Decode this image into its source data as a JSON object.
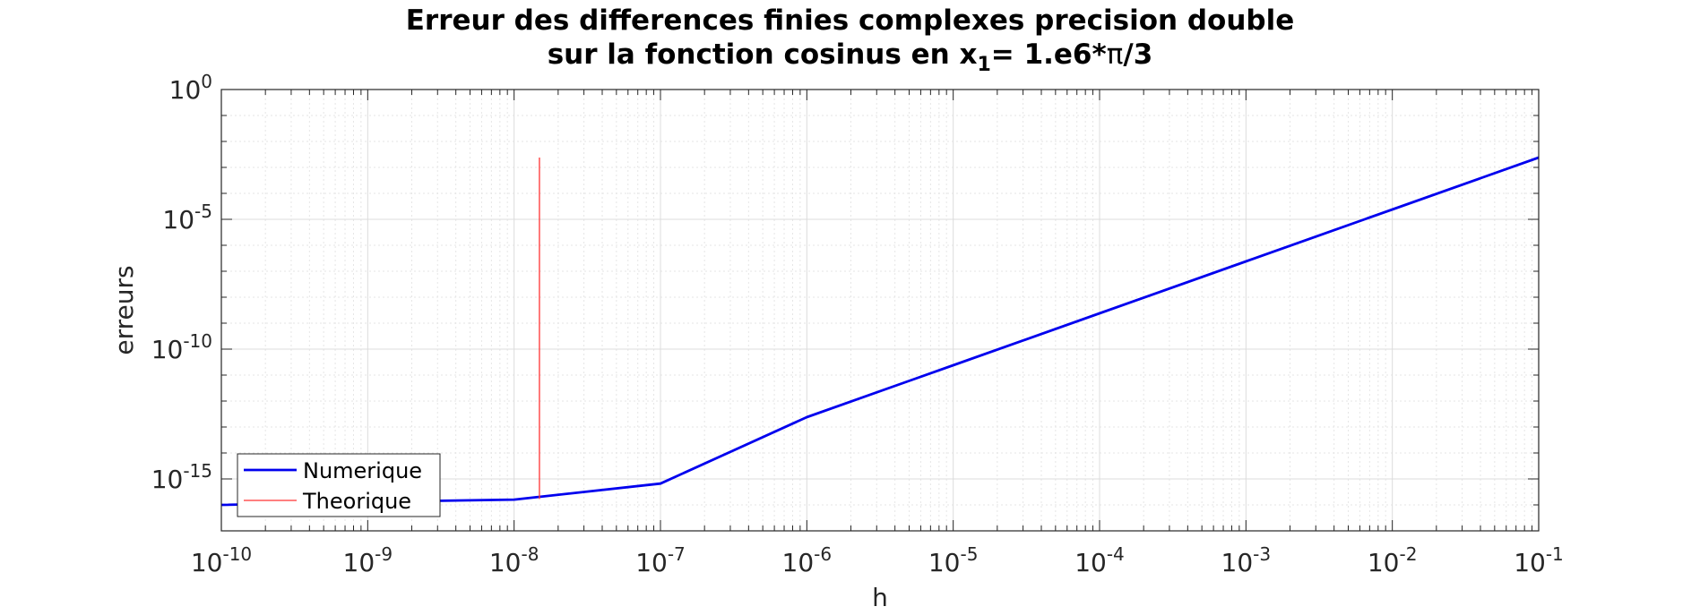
{
  "chart_data": {
    "type": "line",
    "title_line1": "Erreur des differences finies complexes precision double",
    "title_line2_pre": "sur la fonction cosinus en x",
    "title_line2_sub": "1",
    "title_line2_mid": "= 1.e6*",
    "title_line2_pi": "π",
    "title_line2_post": "/3",
    "xlabel": "h",
    "ylabel": "erreurs",
    "xscale": "log",
    "yscale": "log",
    "xlim": [
      1e-10,
      0.1
    ],
    "ylim": [
      1e-17,
      1
    ],
    "grid": true,
    "minor_grid": true,
    "legend_position": "bottom-left",
    "x_ticks": [
      {
        "value": 1e-10,
        "base": "10",
        "exp": "-10"
      },
      {
        "value": 1e-09,
        "base": "10",
        "exp": "-9"
      },
      {
        "value": 1e-08,
        "base": "10",
        "exp": "-8"
      },
      {
        "value": 1e-07,
        "base": "10",
        "exp": "-7"
      },
      {
        "value": 1e-06,
        "base": "10",
        "exp": "-6"
      },
      {
        "value": 1e-05,
        "base": "10",
        "exp": "-5"
      },
      {
        "value": 0.0001,
        "base": "10",
        "exp": "-4"
      },
      {
        "value": 0.001,
        "base": "10",
        "exp": "-3"
      },
      {
        "value": 0.01,
        "base": "10",
        "exp": "-2"
      },
      {
        "value": 0.1,
        "base": "10",
        "exp": "-1"
      }
    ],
    "y_ticks": [
      {
        "value": 1,
        "base": "10",
        "exp": "0"
      },
      {
        "value": 1e-05,
        "base": "10",
        "exp": "-5"
      },
      {
        "value": 1e-10,
        "base": "10",
        "exp": "-10"
      },
      {
        "value": 1e-15,
        "base": "10",
        "exp": "-15"
      }
    ],
    "series": [
      {
        "name": "Numerique",
        "color": "#0000ee",
        "kind": "line",
        "x": [
          1e-10,
          1e-09,
          1e-08,
          1e-07,
          1e-06,
          1e-05,
          0.0001,
          0.001,
          0.01,
          0.1
        ],
        "y": [
          1e-16,
          1.3e-16,
          1.6e-16,
          6.6e-16,
          2.4e-13,
          2.4e-11,
          2.4e-09,
          2.4e-07,
          2.4e-05,
          0.0024
        ]
      },
      {
        "name": "Theorique",
        "color": "#ff3333",
        "kind": "vline",
        "x": 1.49e-08,
        "y": [
          1.7e-16,
          0.0024
        ]
      }
    ]
  }
}
